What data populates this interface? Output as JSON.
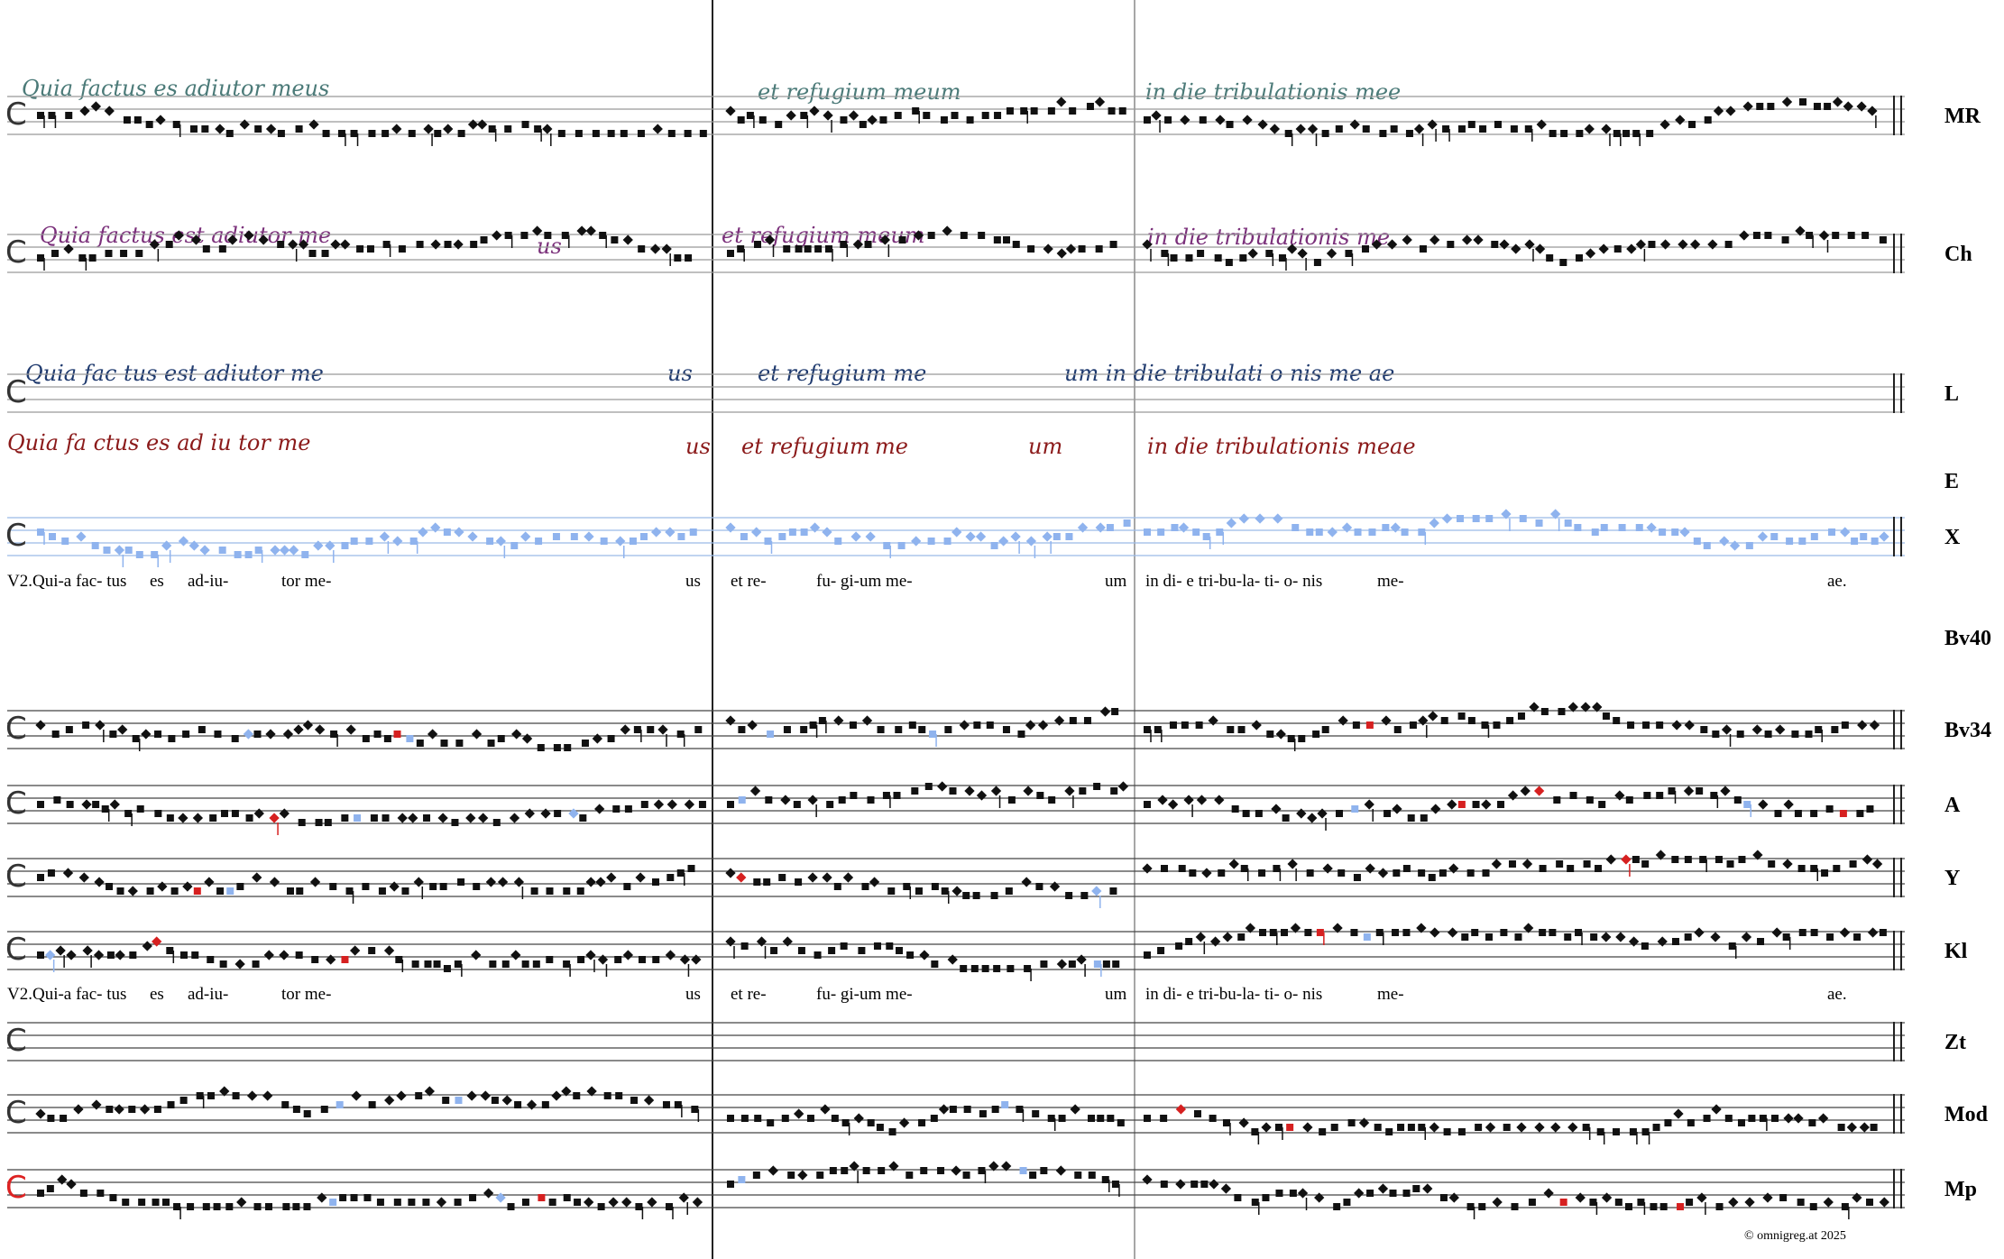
{
  "rows": [
    {
      "label": "MR",
      "manuscript": [
        "Quia factus es adiutor meus",
        "et refugium meum",
        "in die tribulationis mee"
      ]
    },
    {
      "label": "Ch",
      "manuscript": [
        "Quia factus est adiutor me",
        "us",
        "et refugium meum",
        "in die tribulationis me"
      ]
    },
    {
      "label": "L",
      "manuscript": [
        "Quia fac tus est adiutor me",
        "us",
        "et refugium me",
        "um in die tribulati o nis me ae"
      ]
    },
    {
      "label": "E",
      "manuscript": [
        "Quia fa ctus es ad iu tor me",
        "us",
        "et refugium",
        "me",
        "um",
        "in die tribulationis meae"
      ]
    },
    {
      "label": "X",
      "manuscript": []
    },
    {
      "label": "Bv40",
      "manuscript": []
    },
    {
      "label": "Bv34",
      "manuscript": []
    },
    {
      "label": "A",
      "manuscript": []
    },
    {
      "label": "Y",
      "manuscript": []
    },
    {
      "label": "Kl",
      "manuscript": []
    },
    {
      "label": "Zt",
      "manuscript": []
    },
    {
      "label": "Mod",
      "manuscript": []
    },
    {
      "label": "Mp",
      "manuscript": []
    }
  ],
  "lyrics": [
    [
      "V2.Qui-a fac- tus",
      "es",
      "ad-iu-",
      "tor me-",
      "us",
      "et re-",
      "fu- gi-um me-",
      "um",
      "in di- e tri-bu-la- ti- o- nis",
      "me-",
      "ae."
    ],
    [
      "V2.Qui-a fac- tus",
      "es",
      "ad-iu-",
      "tor me-",
      "us",
      "et re-",
      "fu- gi-um me-",
      "um",
      "in di- e tri-bu-la- ti- o- nis",
      "me-",
      "ae."
    ]
  ],
  "footer": "©  omnigreg.at    2025"
}
